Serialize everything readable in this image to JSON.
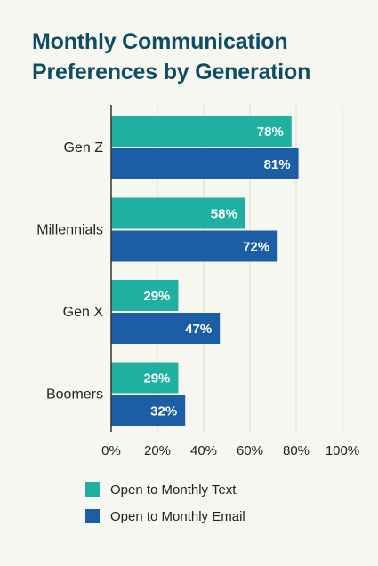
{
  "chart_data": {
    "type": "bar",
    "orientation": "horizontal",
    "title": "Monthly Communication Preferences by Generation",
    "title_lines": [
      "Monthly Communication",
      "Preferences by Generation"
    ],
    "categories": [
      "Gen Z",
      "Millennials",
      "Gen X",
      "Boomers"
    ],
    "series": [
      {
        "name": "Open to Monthly Text",
        "values": [
          78,
          58,
          29,
          29
        ],
        "color": "#20b0a2"
      },
      {
        "name": "Open to Monthly Email",
        "values": [
          81,
          72,
          47,
          32
        ],
        "color": "#1c5ea6"
      }
    ],
    "xlim": [
      0,
      100
    ],
    "xticks": [
      0,
      20,
      40,
      60,
      80,
      100
    ],
    "tick_suffix": "%",
    "value_suffix": "%",
    "grid": true,
    "legend_position": "bottom"
  }
}
